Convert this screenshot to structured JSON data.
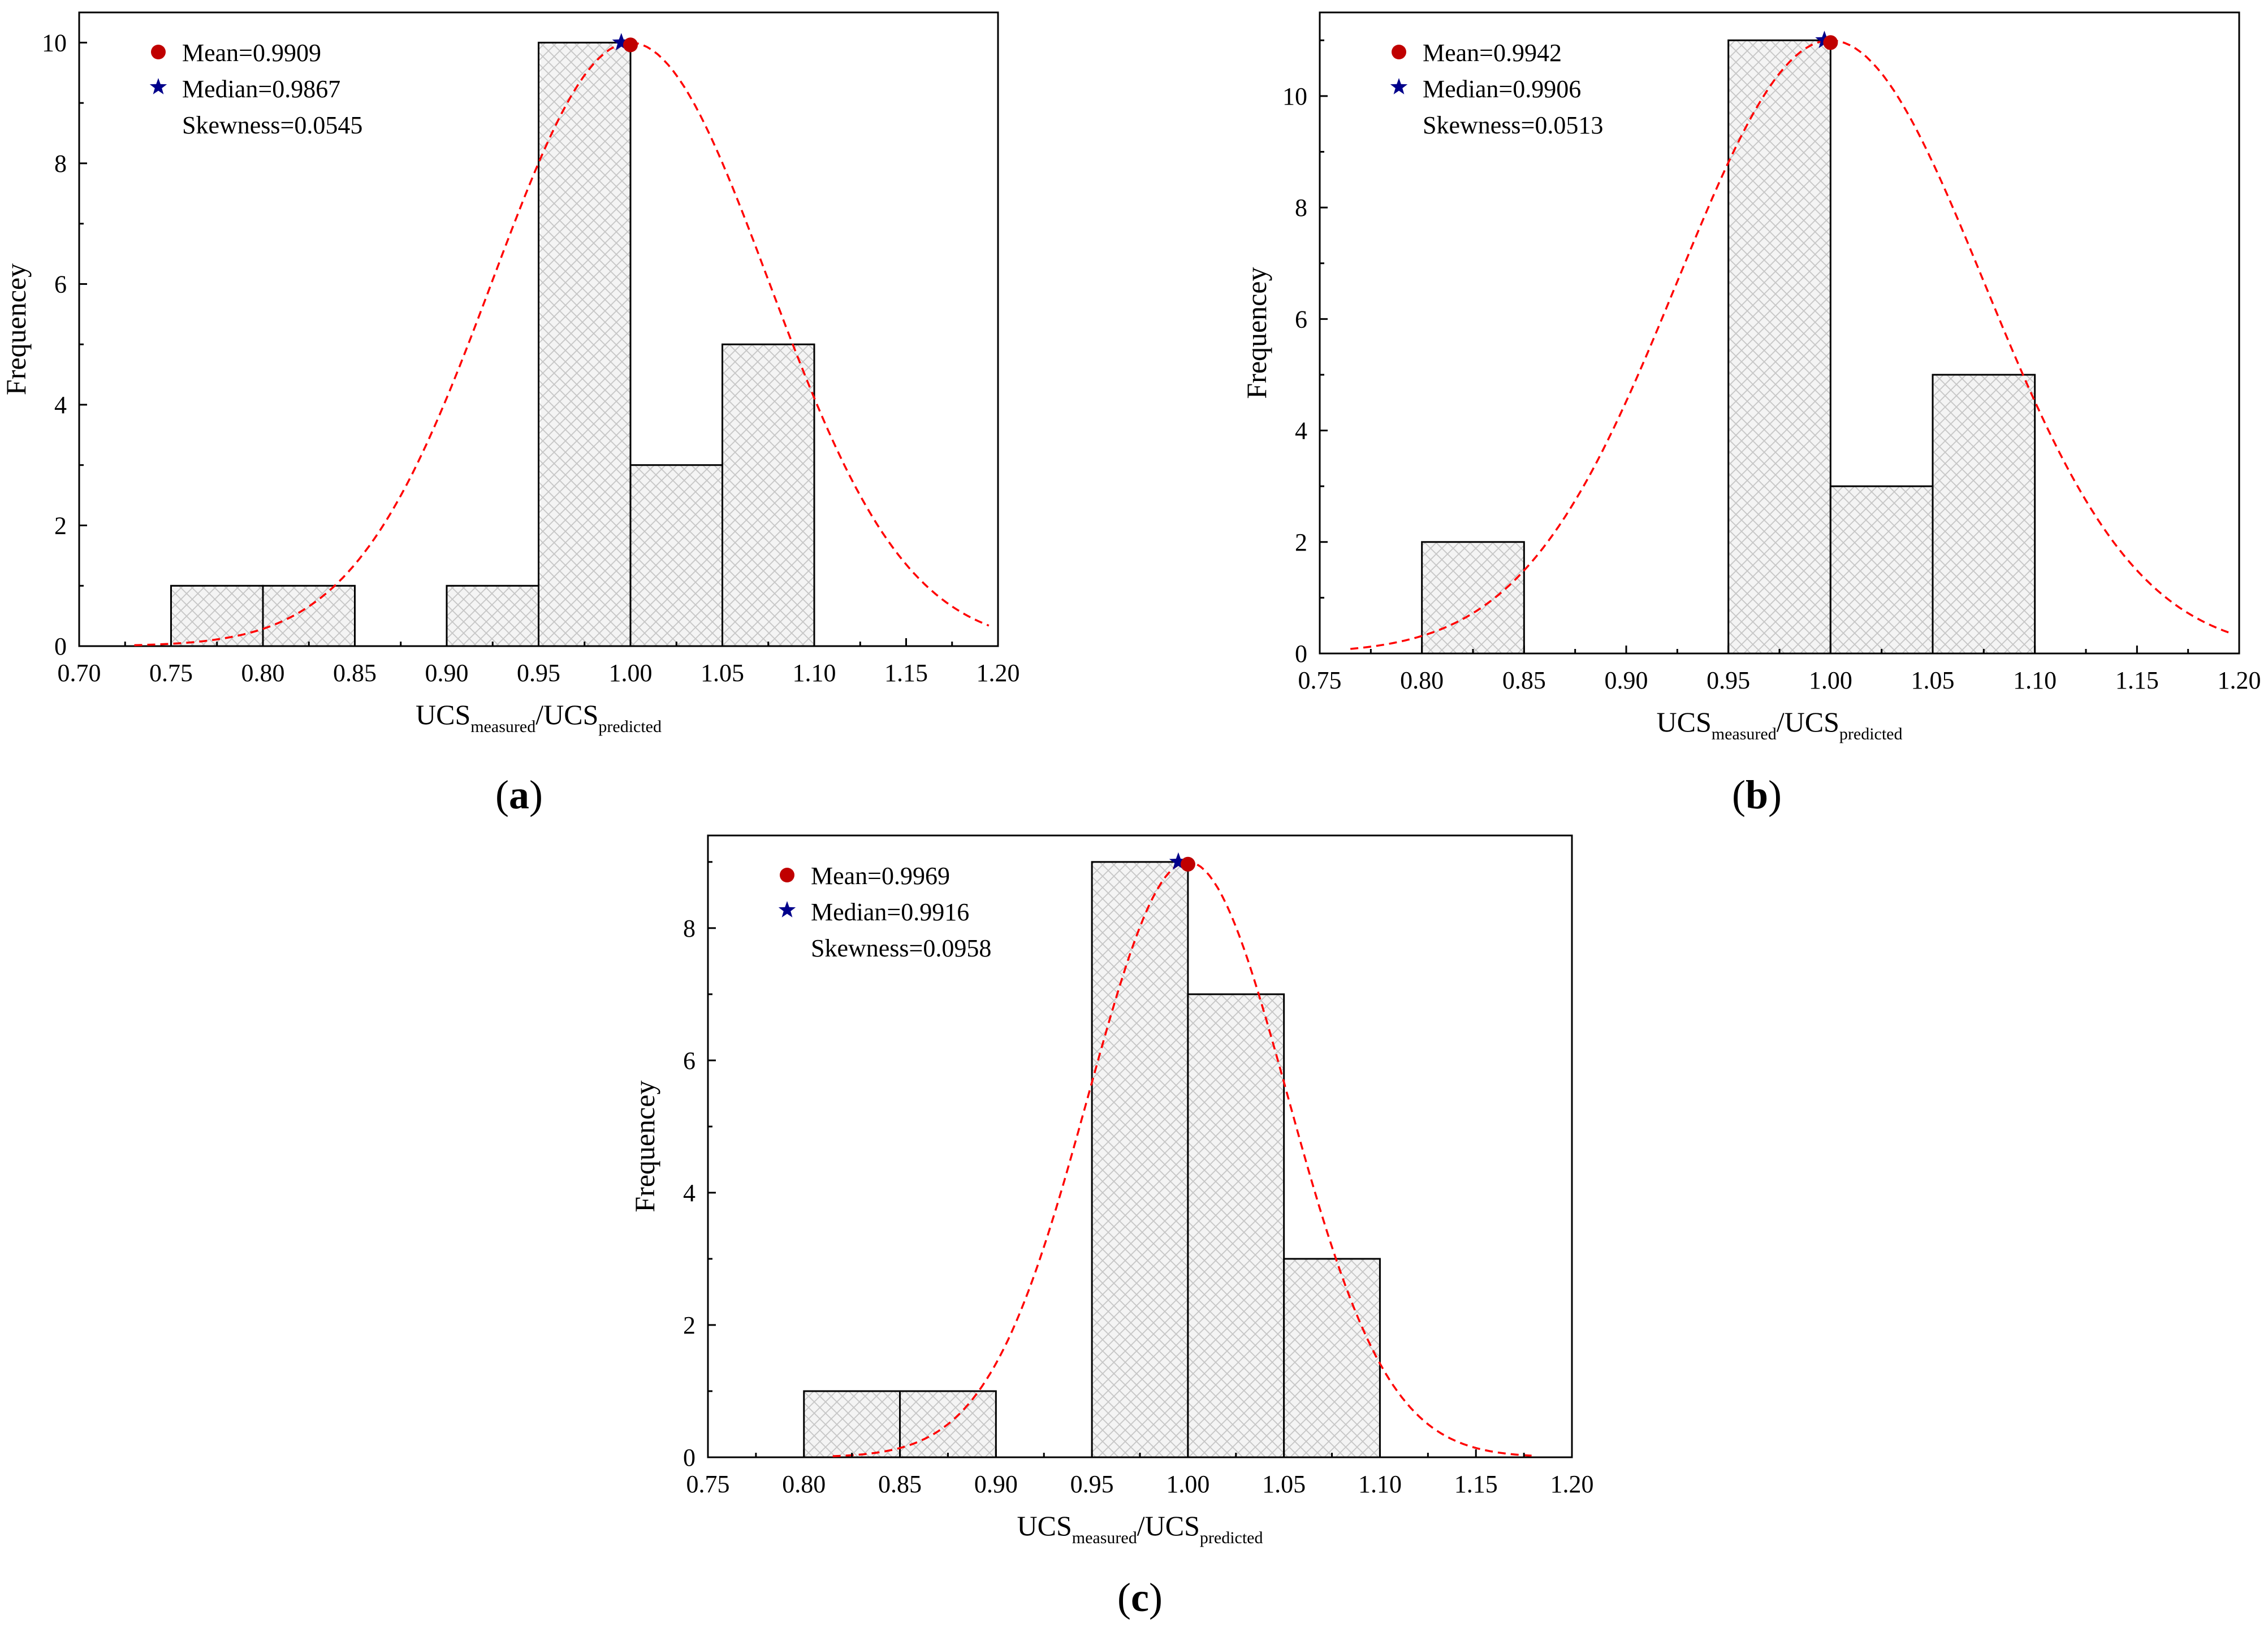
{
  "chart_data": [
    {
      "id": "a",
      "type": "bar",
      "panel_label": "a",
      "xlabel": {
        "main": "UCS",
        "sub1": "measured",
        "sep": "/UCS",
        "sub2": "predicted"
      },
      "ylabel": "Frequencey",
      "xlim": [
        0.7,
        1.2
      ],
      "ylim": [
        0,
        10.5
      ],
      "xticks": [
        "0.70",
        "0.75",
        "0.80",
        "0.85",
        "0.90",
        "0.95",
        "1.00",
        "1.05",
        "1.10",
        "1.15",
        "1.20"
      ],
      "yticks": [
        "0",
        "2",
        "4",
        "6",
        "8",
        "10"
      ],
      "bin_width": 0.05,
      "bins": [
        {
          "start": 0.75,
          "count": 1
        },
        {
          "start": 0.8,
          "count": 1
        },
        {
          "start": 0.9,
          "count": 1
        },
        {
          "start": 0.95,
          "count": 10
        },
        {
          "start": 1.0,
          "count": 3
        },
        {
          "start": 1.05,
          "count": 5
        }
      ],
      "curve": {
        "mean": 1.0,
        "sd": 0.075,
        "peak": 10,
        "x_start": 0.73,
        "x_end": 1.195
      },
      "mean_marker": {
        "x": 1.0,
        "y": 10
      },
      "median_marker": {
        "x": 0.995,
        "y": 10
      },
      "legend": {
        "mean": "Mean=0.9909",
        "median": "Median=0.9867",
        "skewness": "Skewness=0.0545"
      },
      "colors": {
        "mean": "#c00000",
        "median": "#00008b",
        "curve": "#ff0000"
      }
    },
    {
      "id": "b",
      "type": "bar",
      "panel_label": "b",
      "xlabel": {
        "main": "UCS",
        "sub1": "measured",
        "sep": "/UCS",
        "sub2": "predicted"
      },
      "ylabel": "Frequencey",
      "xlim": [
        0.75,
        1.2
      ],
      "ylim": [
        0,
        11.5
      ],
      "xticks": [
        "0.75",
        "0.80",
        "0.85",
        "0.90",
        "0.95",
        "1.00",
        "1.05",
        "1.10",
        "1.15",
        "1.20"
      ],
      "yticks": [
        "0",
        "2",
        "4",
        "6",
        "8",
        "10"
      ],
      "bin_width": 0.05,
      "bins": [
        {
          "start": 0.8,
          "count": 2
        },
        {
          "start": 0.95,
          "count": 11
        },
        {
          "start": 1.0,
          "count": 3
        },
        {
          "start": 1.05,
          "count": 5
        }
      ],
      "curve": {
        "mean": 1.0,
        "sd": 0.075,
        "peak": 11,
        "x_start": 0.765,
        "x_end": 1.195
      },
      "mean_marker": {
        "x": 1.0,
        "y": 11
      },
      "median_marker": {
        "x": 0.997,
        "y": 11
      },
      "legend": {
        "mean": "Mean=0.9942",
        "median": "Median=0.9906",
        "skewness": "Skewness=0.0513"
      },
      "colors": {
        "mean": "#c00000",
        "median": "#00008b",
        "curve": "#ff0000"
      }
    },
    {
      "id": "c",
      "type": "bar",
      "panel_label": "c",
      "xlabel": {
        "main": "UCS",
        "sub1": "measured",
        "sep": "/UCS",
        "sub2": "predicted"
      },
      "ylabel": "Frequencey",
      "xlim": [
        0.75,
        1.2
      ],
      "ylim": [
        0,
        9.4
      ],
      "xticks": [
        "0.75",
        "0.80",
        "0.85",
        "0.90",
        "0.95",
        "1.00",
        "1.05",
        "1.10",
        "1.15",
        "1.20"
      ],
      "yticks": [
        "0",
        "2",
        "4",
        "6",
        "8"
      ],
      "bin_width": 0.05,
      "bins": [
        {
          "start": 0.8,
          "count": 1
        },
        {
          "start": 0.85,
          "count": 1
        },
        {
          "start": 0.95,
          "count": 9
        },
        {
          "start": 1.0,
          "count": 7
        },
        {
          "start": 1.05,
          "count": 3
        }
      ],
      "curve": {
        "mean": 1.0,
        "sd": 0.052,
        "peak": 9,
        "x_start": 0.815,
        "x_end": 1.18
      },
      "mean_marker": {
        "x": 1.0,
        "y": 9
      },
      "median_marker": {
        "x": 0.995,
        "y": 9
      },
      "legend": {
        "mean": "Mean=0.9969",
        "median": "Median=0.9916",
        "skewness": "Skewness=0.0958"
      },
      "colors": {
        "mean": "#c00000",
        "median": "#00008b",
        "curve": "#ff0000"
      }
    }
  ]
}
